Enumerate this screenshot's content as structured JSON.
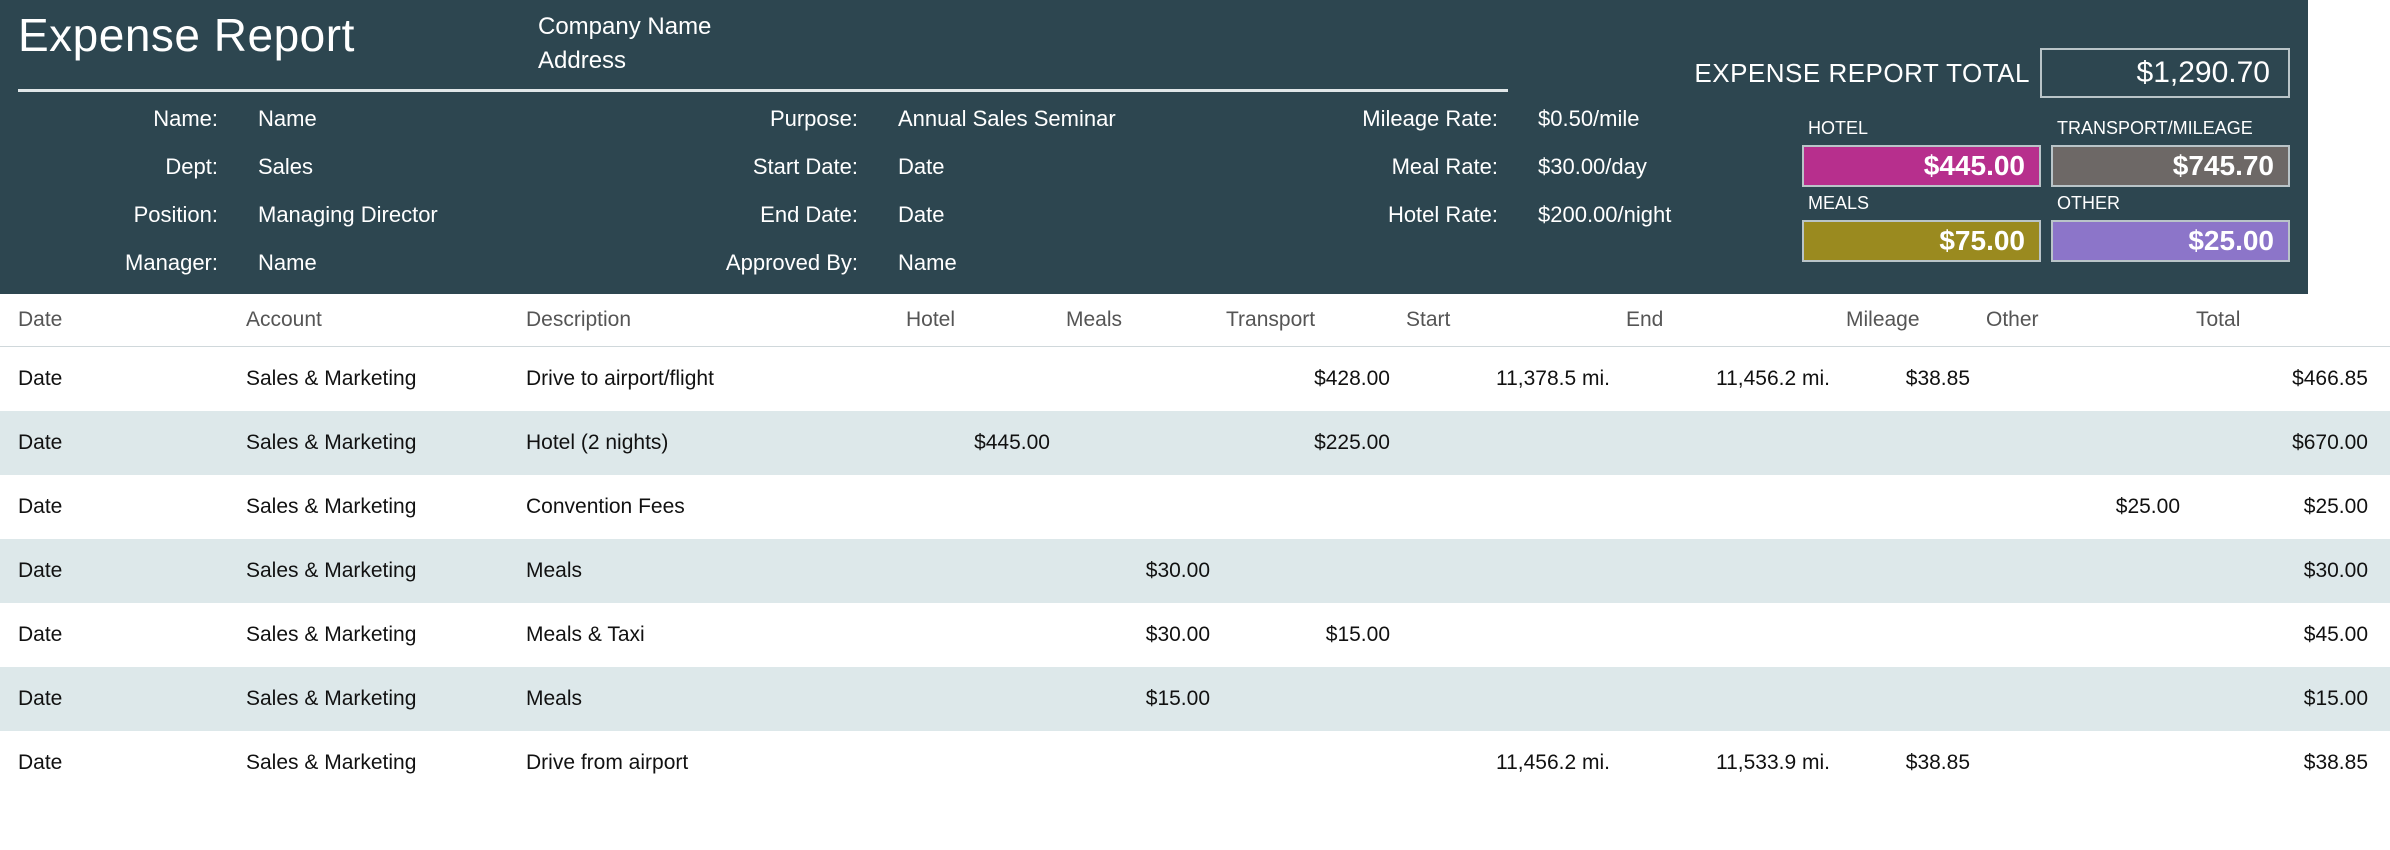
{
  "colors": {
    "header_bg": "#2d4650",
    "row_alt_bg": "#dde8ea",
    "border": "#b9c4c8",
    "hotel_card": "#b72f8d",
    "transport_card": "#6d6866",
    "meals_card": "#9a8a1f",
    "other_card": "#8c75c9",
    "meal_overage_text": "#e03020"
  },
  "header": {
    "title": "Expense Report",
    "company_name": "Company Name",
    "address": "Address",
    "total_label": "EXPENSE REPORT TOTAL",
    "total_value": "$1,290.70"
  },
  "meta": {
    "name_label": "Name:",
    "name_value": "Name",
    "dept_label": "Dept:",
    "dept_value": "Sales",
    "position_label": "Position:",
    "position_value": "Managing Director",
    "manager_label": "Manager:",
    "manager_value": "Name",
    "purpose_label": "Purpose:",
    "purpose_value": "Annual Sales Seminar",
    "start_date_label": "Start Date:",
    "start_date_value": "Date",
    "end_date_label": "End Date:",
    "end_date_value": "Date",
    "approved_label": "Approved By:",
    "approved_value": "Name",
    "mileage_rate_label": "Mileage Rate:",
    "mileage_rate_value": "$0.50/mile",
    "meal_rate_label": "Meal Rate:",
    "meal_rate_value": "$30.00/day",
    "hotel_rate_label": "Hotel Rate:",
    "hotel_rate_value": "$200.00/night"
  },
  "cards": {
    "hotel_label": "HOTEL",
    "hotel_value": "$445.00",
    "transport_label": "TRANSPORT/MILEAGE",
    "transport_value": "$745.70",
    "meals_label": "MEALS",
    "meals_value": "$75.00",
    "other_label": "OTHER",
    "other_value": "$25.00"
  },
  "table": {
    "columns": {
      "date": "Date",
      "account": "Account",
      "description": "Description",
      "hotel": "Hotel",
      "meals": "Meals",
      "transport": "Transport",
      "start": "Start",
      "end": "End",
      "mileage": "Mileage",
      "other": "Other",
      "total": "Total"
    },
    "rows": [
      {
        "date": "Date",
        "account": "Sales & Marketing",
        "description": "Drive to airport/flight",
        "hotel": "",
        "meals": "",
        "transport": "$428.00",
        "start": "11,378.5  mi.",
        "end": "11,456.2  mi.",
        "mileage": "$38.85",
        "other": "",
        "total": "$466.85",
        "meals_red": false
      },
      {
        "date": "Date",
        "account": "Sales & Marketing",
        "description": "Hotel (2 nights)",
        "hotel": "$445.00",
        "meals": "",
        "transport": "$225.00",
        "start": "",
        "end": "",
        "mileage": "",
        "other": "",
        "total": "$670.00",
        "meals_red": false
      },
      {
        "date": "Date",
        "account": "Sales & Marketing",
        "description": "Convention Fees",
        "hotel": "",
        "meals": "",
        "transport": "",
        "start": "",
        "end": "",
        "mileage": "",
        "other": "$25.00",
        "total": "$25.00",
        "meals_red": false
      },
      {
        "date": "Date",
        "account": "Sales & Marketing",
        "description": "Meals",
        "hotel": "",
        "meals": "$30.00",
        "transport": "",
        "start": "",
        "end": "",
        "mileage": "",
        "other": "",
        "total": "$30.00",
        "meals_red": true
      },
      {
        "date": "Date",
        "account": "Sales & Marketing",
        "description": "Meals & Taxi",
        "hotel": "",
        "meals": "$30.00",
        "transport": "$15.00",
        "start": "",
        "end": "",
        "mileage": "",
        "other": "",
        "total": "$45.00",
        "meals_red": true
      },
      {
        "date": "Date",
        "account": "Sales & Marketing",
        "description": "Meals",
        "hotel": "",
        "meals": "$15.00",
        "transport": "",
        "start": "",
        "end": "",
        "mileage": "",
        "other": "",
        "total": "$15.00",
        "meals_red": true
      },
      {
        "date": "Date",
        "account": "Sales & Marketing",
        "description": "Drive from airport",
        "hotel": "",
        "meals": "",
        "transport": "",
        "start": "11,456.2  mi.",
        "end": "11,533.9  mi.",
        "mileage": "$38.85",
        "other": "",
        "total": "$38.85",
        "meals_red": false
      }
    ]
  }
}
